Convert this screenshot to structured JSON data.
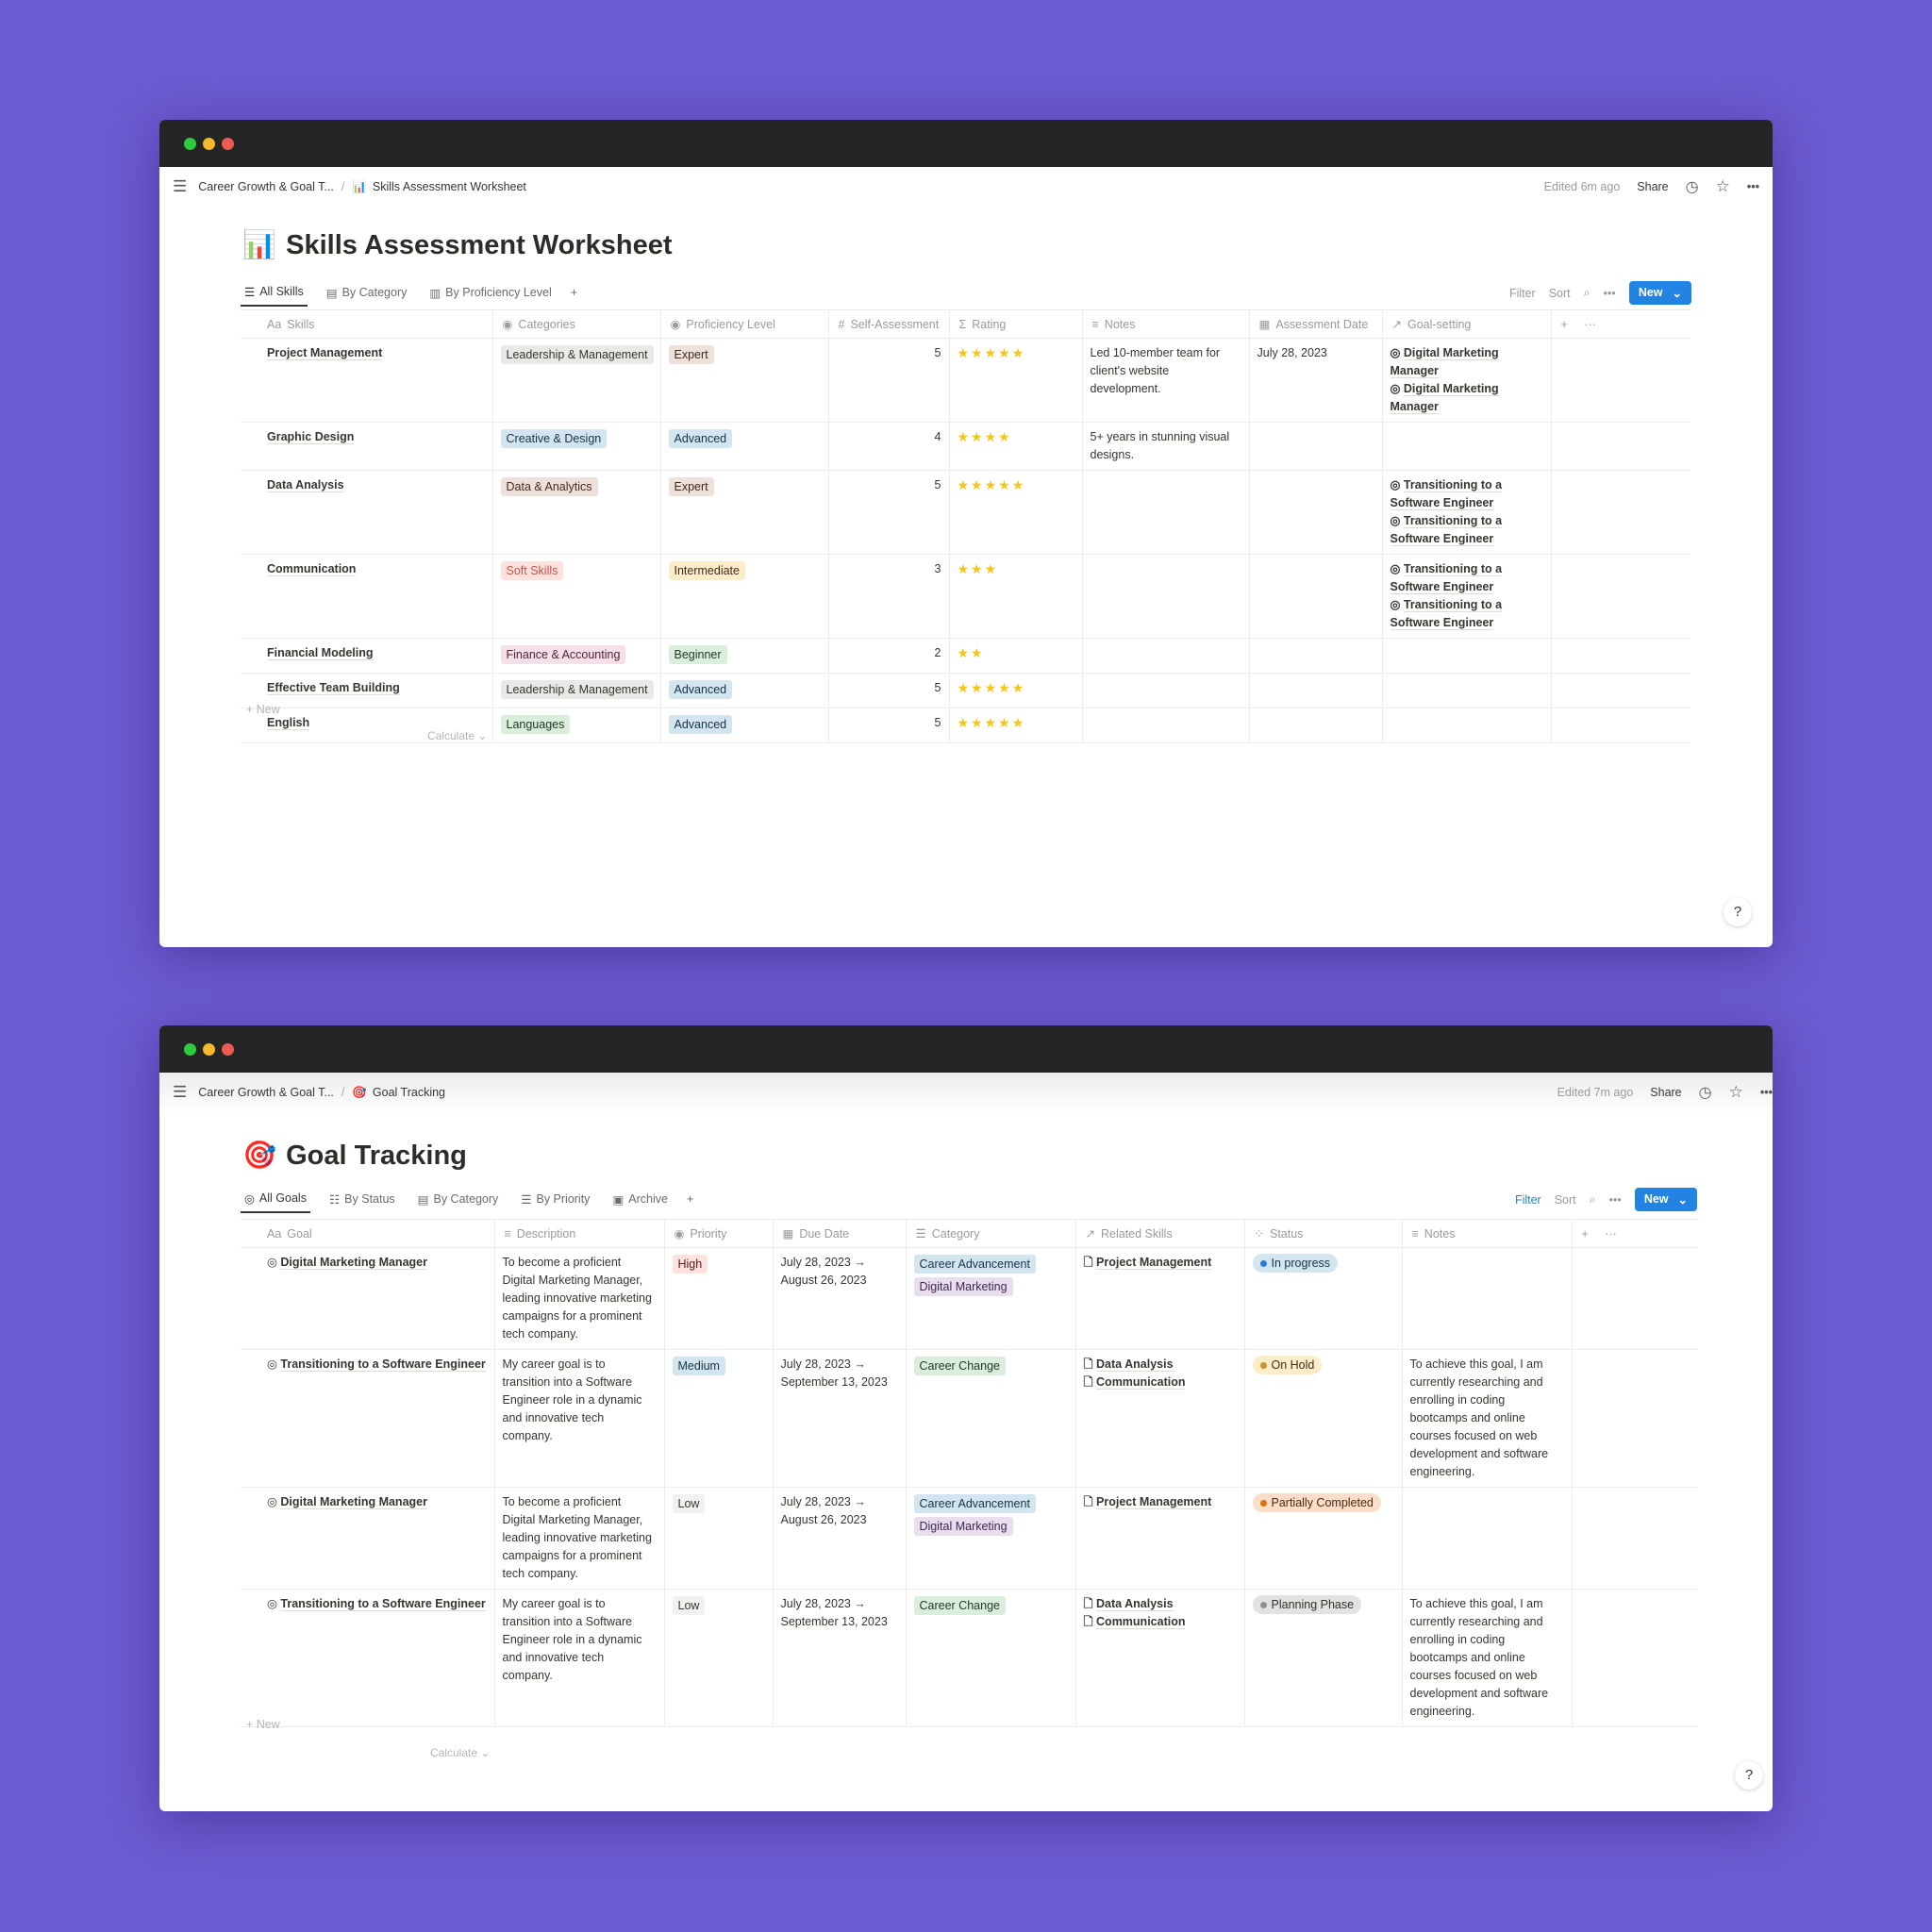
{
  "colors": {
    "background": "#6b5bd0",
    "accent": "#2383e2",
    "star": "#f5c518",
    "titlebar": "#252525"
  },
  "skills_window": {
    "breadcrumb": {
      "parent": "Career Growth & Goal T...",
      "separator": "/",
      "current": "Skills Assessment Worksheet",
      "current_icon": "bar-chart-icon"
    },
    "edited": "Edited 6m ago",
    "share": "Share",
    "title": "Skills Assessment Worksheet",
    "tabs": [
      {
        "label": "All Skills",
        "icon": "stack-icon",
        "active": true
      },
      {
        "label": "By Category",
        "icon": "board-icon"
      },
      {
        "label": "By Proficiency Level",
        "icon": "chart-icon"
      }
    ],
    "toolbar": {
      "filter": "Filter",
      "sort": "Sort",
      "new": "New"
    },
    "columns": [
      "Skills",
      "Categories",
      "Proficiency Level",
      "Self-Assessment",
      "Rating",
      "Notes",
      "Assessment Date",
      "Goal-setting"
    ],
    "column_icons": [
      "Aa",
      "◉",
      "◉",
      "#",
      "Σ",
      "≡",
      "▦",
      "↗"
    ],
    "rows": [
      {
        "skill": "Project Management",
        "category": "Leadership & Management",
        "level": "Expert",
        "self": "5",
        "rating": 5,
        "notes": "Led 10-member team for client's website development.",
        "date": "July 28, 2023",
        "goals": [
          "Digital Marketing Manager",
          "Digital Marketing Manager"
        ]
      },
      {
        "skill": "Graphic Design",
        "category": "Creative & Design",
        "level": "Advanced",
        "self": "4",
        "rating": 4,
        "notes": "5+ years in stunning visual designs.",
        "date": "",
        "goals": []
      },
      {
        "skill": "Data Analysis",
        "category": "Data & Analytics",
        "level": "Expert",
        "self": "5",
        "rating": 5,
        "notes": "",
        "date": "",
        "goals": [
          "Transitioning to a Software Engineer",
          "Transitioning to a Software Engineer"
        ]
      },
      {
        "skill": "Communication",
        "category": "Soft Skills",
        "level": "Intermediate",
        "self": "3",
        "rating": 3,
        "notes": "",
        "date": "",
        "goals": [
          "Transitioning to a Software Engineer",
          "Transitioning to a Software Engineer"
        ]
      },
      {
        "skill": "Financial Modeling",
        "category": "Finance & Accounting",
        "level": "Beginner",
        "self": "2",
        "rating": 2,
        "notes": "",
        "date": "",
        "goals": []
      },
      {
        "skill": "Effective Team Building",
        "category": "Leadership & Management",
        "level": "Advanced",
        "self": "5",
        "rating": 5,
        "notes": "",
        "date": "",
        "goals": []
      },
      {
        "skill": "English",
        "category": "Languages",
        "level": "Advanced",
        "self": "5",
        "rating": 5,
        "notes": "",
        "date": "",
        "goals": []
      }
    ],
    "new_row": "+ New",
    "calculate": "Calculate ⌄",
    "help": "?"
  },
  "goals_window": {
    "breadcrumb": {
      "parent": "Career Growth & Goal T...",
      "separator": "/",
      "current": "Goal Tracking",
      "current_icon": "target-icon"
    },
    "edited": "Edited 7m ago",
    "share": "Share",
    "title": "Goal Tracking",
    "tabs": [
      {
        "label": "All Goals",
        "icon": "target-icon",
        "active": true
      },
      {
        "label": "By Status",
        "icon": "checklist-icon"
      },
      {
        "label": "By Category",
        "icon": "board-icon"
      },
      {
        "label": "By Priority",
        "icon": "list-icon"
      },
      {
        "label": "Archive",
        "icon": "archive-icon"
      }
    ],
    "toolbar": {
      "filter": "Filter",
      "sort": "Sort",
      "new": "New"
    },
    "columns": [
      "Goal",
      "Description",
      "Priority",
      "Due Date",
      "Category",
      "Related Skills",
      "Status",
      "Notes"
    ],
    "column_icons": [
      "Aa",
      "≡",
      "◉",
      "▦",
      "☰",
      "↗",
      "⁘",
      "≡"
    ],
    "rows": [
      {
        "goal": "Digital Marketing Manager",
        "description": "To become a proficient Digital Marketing Manager, leading innovative marketing campaigns for a prominent tech company.",
        "priority": "High",
        "due": "July 28, 2023 → August 26, 2023",
        "categories": [
          "Career Advancement",
          "Digital Marketing"
        ],
        "skills": [
          "Project Management"
        ],
        "status": "In progress",
        "notes": ""
      },
      {
        "goal": "Transitioning to a Software Engineer",
        "description": "My career goal is to transition into a Software Engineer role in a dynamic and innovative tech company.",
        "priority": "Medium",
        "due": "July 28, 2023 → September 13, 2023",
        "categories": [
          "Career Change"
        ],
        "skills": [
          "Data Analysis",
          "Communication"
        ],
        "status": "On Hold",
        "notes": "To achieve this goal, I am currently researching and enrolling in coding bootcamps and online courses focused on web development and software engineering."
      },
      {
        "goal": "Digital Marketing Manager",
        "description": "To become a proficient Digital Marketing Manager, leading innovative marketing campaigns for a prominent tech company.",
        "priority": "Low",
        "due": "July 28, 2023 → August 26, 2023",
        "categories": [
          "Career Advancement",
          "Digital Marketing"
        ],
        "skills": [
          "Project Management"
        ],
        "status": "Partially Completed",
        "notes": ""
      },
      {
        "goal": "Transitioning to a Software Engineer",
        "description": "My career goal is to transition into a Software Engineer role in a dynamic and innovative tech company.",
        "priority": "Low",
        "due": "July 28, 2023 → September 13, 2023",
        "categories": [
          "Career Change"
        ],
        "skills": [
          "Data Analysis",
          "Communication"
        ],
        "status": "Planning Phase",
        "notes": "To achieve this goal, I am currently researching and enrolling in coding bootcamps and online courses focused on web development and software engineering."
      }
    ],
    "new_row": "+ New",
    "calculate": "Calculate ⌄",
    "help": "?"
  }
}
